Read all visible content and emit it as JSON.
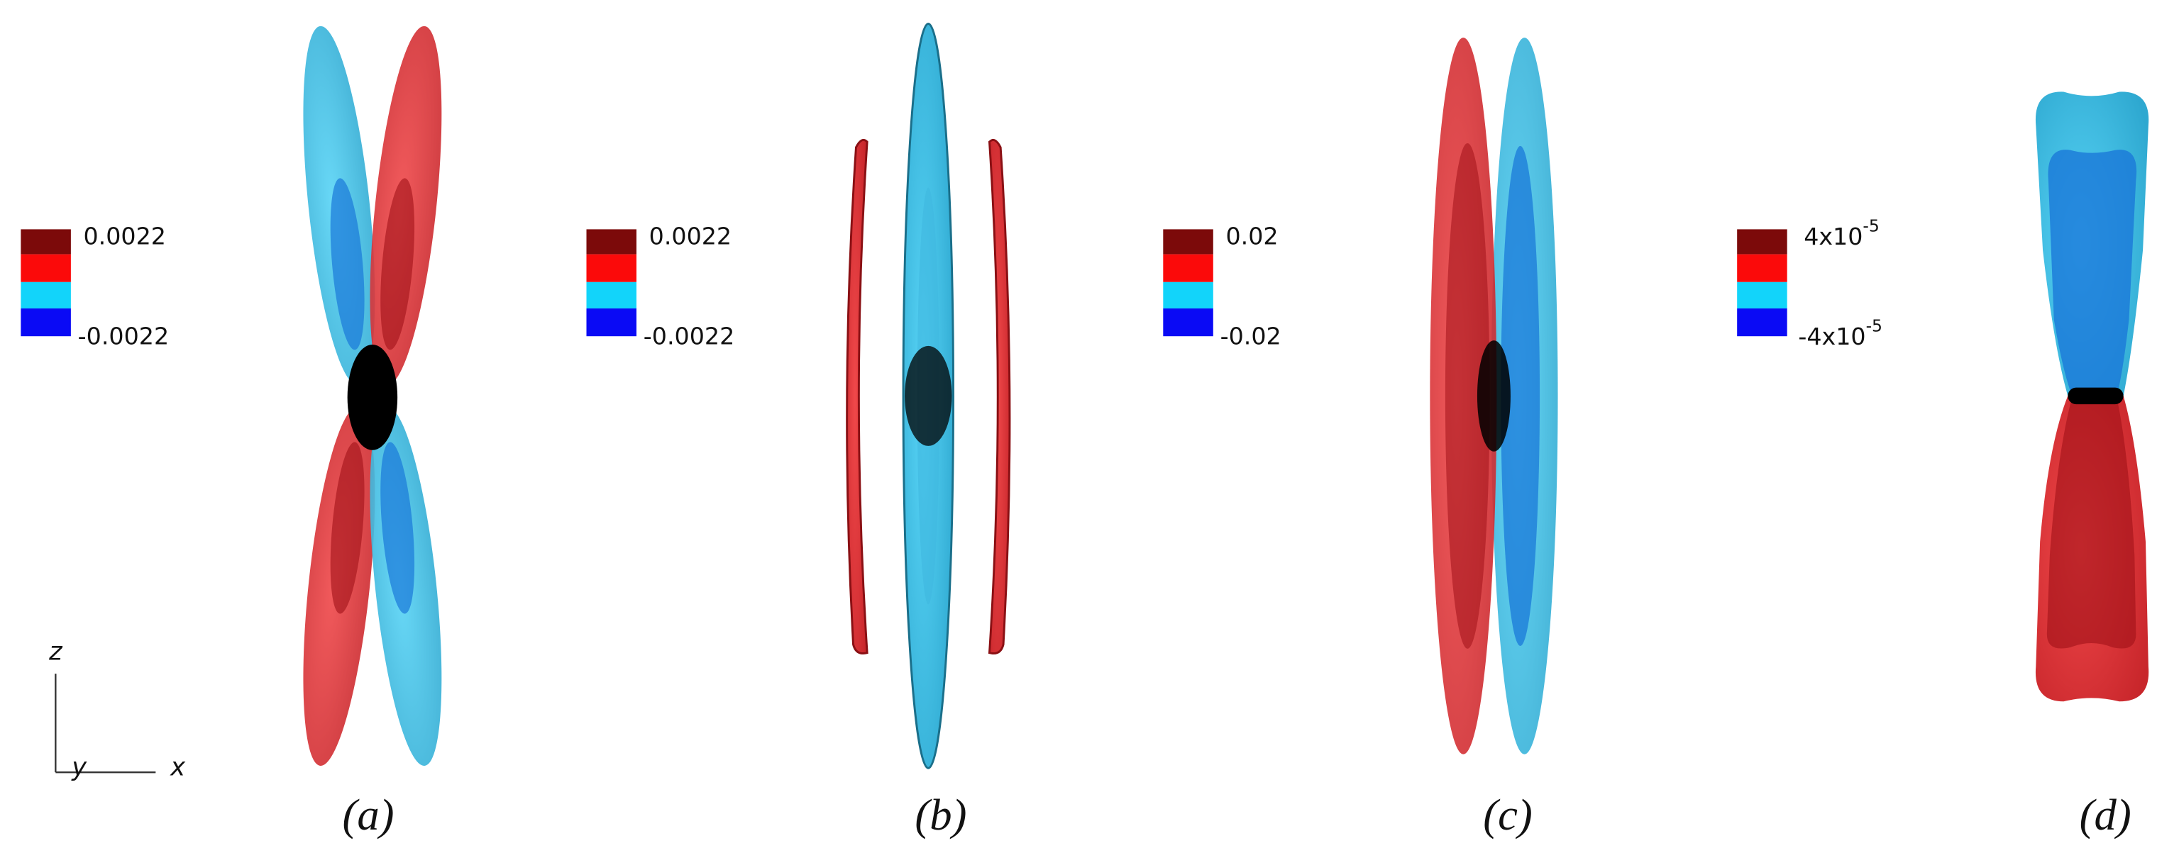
{
  "panels": [
    {
      "caption": "(a)",
      "legend": {
        "max": "0.0022",
        "min": "-0.0022"
      }
    },
    {
      "caption": "(b)",
      "legend": {
        "max": "0.0022",
        "min": "-0.0022"
      }
    },
    {
      "caption": "(c)",
      "legend": {
        "max": "0.02",
        "min": "-0.02"
      }
    },
    {
      "caption": "(d)",
      "legend": {
        "max": {
          "base": "4x10",
          "exp": "-5"
        },
        "min": {
          "base": "-4x10",
          "exp": "-5"
        }
      }
    }
  ],
  "axes": {
    "z": "z",
    "y": "y",
    "x": "x"
  }
}
